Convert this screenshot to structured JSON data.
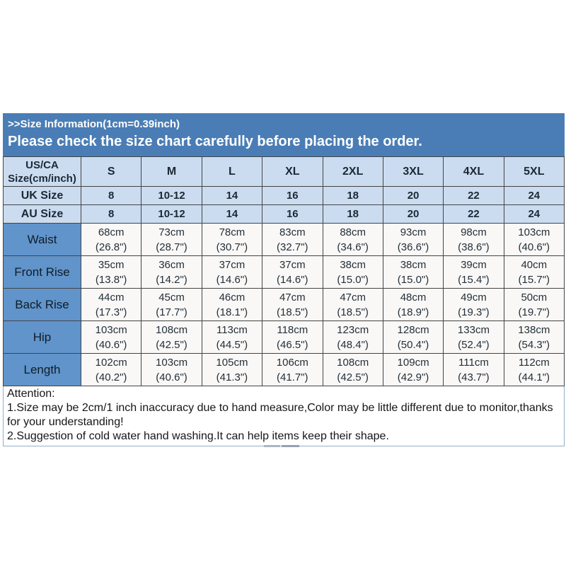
{
  "banner": {
    "line1": ">>Size Information(1cm=0.39inch)",
    "line2": "Please check the size chart carefully before placing the order."
  },
  "table": {
    "corner_header": "US/CA Size(cm/inch)",
    "size_columns": [
      "S",
      "M",
      "L",
      "XL",
      "2XL",
      "3XL",
      "4XL",
      "5XL"
    ],
    "size_rows": [
      {
        "label": "UK Size",
        "values": [
          "8",
          "10-12",
          "14",
          "16",
          "18",
          "20",
          "22",
          "24"
        ]
      },
      {
        "label": "AU Size",
        "values": [
          "8",
          "10-12",
          "14",
          "16",
          "18",
          "20",
          "22",
          "24"
        ]
      }
    ],
    "measurement_rows": [
      {
        "label": "Waist",
        "cm": [
          "68cm",
          "73cm",
          "78cm",
          "83cm",
          "88cm",
          "93cm",
          "98cm",
          "103cm"
        ],
        "inch": [
          "(26.8\")",
          "(28.7\")",
          "(30.7\")",
          "(32.7\")",
          "(34.6\")",
          "(36.6\")",
          "(38.6\")",
          "(40.6\")"
        ]
      },
      {
        "label": "Front Rise",
        "cm": [
          "35cm",
          "36cm",
          "37cm",
          "37cm",
          "38cm",
          "38cm",
          "39cm",
          "40cm"
        ],
        "inch": [
          "(13.8\")",
          "(14.2\")",
          "(14.6\")",
          "(14.6\")",
          "(15.0\")",
          "(15.0\")",
          "(15.4\")",
          "(15.7\")"
        ]
      },
      {
        "label": "Back Rise",
        "cm": [
          "44cm",
          "45cm",
          "46cm",
          "47cm",
          "47cm",
          "48cm",
          "49cm",
          "50cm"
        ],
        "inch": [
          "(17.3\")",
          "(17.7\")",
          "(18.1\")",
          "(18.5\")",
          "(18.5\")",
          "(18.9\")",
          "(19.3\")",
          "(19.7\")"
        ]
      },
      {
        "label": "Hip",
        "cm": [
          "103cm",
          "108cm",
          "113cm",
          "118cm",
          "123cm",
          "128cm",
          "133cm",
          "138cm"
        ],
        "inch": [
          "(40.6\")",
          "(42.5\")",
          "(44.5\")",
          "(46.5\")",
          "(48.4\")",
          "(50.4\")",
          "(52.4\")",
          "(54.3\")"
        ]
      },
      {
        "label": "Length",
        "cm": [
          "102cm",
          "103cm",
          "105cm",
          "106cm",
          "108cm",
          "109cm",
          "111cm",
          "112cm"
        ],
        "inch": [
          "(40.2\")",
          "(40.6\")",
          "(41.3\")",
          "(41.7\")",
          "(42.5\")",
          "(42.9\")",
          "(43.7\")",
          "(44.1\")"
        ]
      }
    ]
  },
  "attention": {
    "heading": "Attention:",
    "notes": [
      "1.Size may be 2cm/1 inch inaccuracy due to hand measure,Color may be little different due to monitor,thanks for your understanding!",
      "2.Suggestion of cold water hand washing.It can help items keep their shape."
    ]
  },
  "colors": {
    "banner_blue": "#4a7db5",
    "header_light_blue": "#cbdcf0",
    "label_blue": "#6094ca",
    "cell_bg": "#f9f8f6",
    "border_dark": "#444444",
    "attention_border": "#93aecb",
    "banner_text": "#ffffff",
    "table_text": "#242f3a"
  }
}
